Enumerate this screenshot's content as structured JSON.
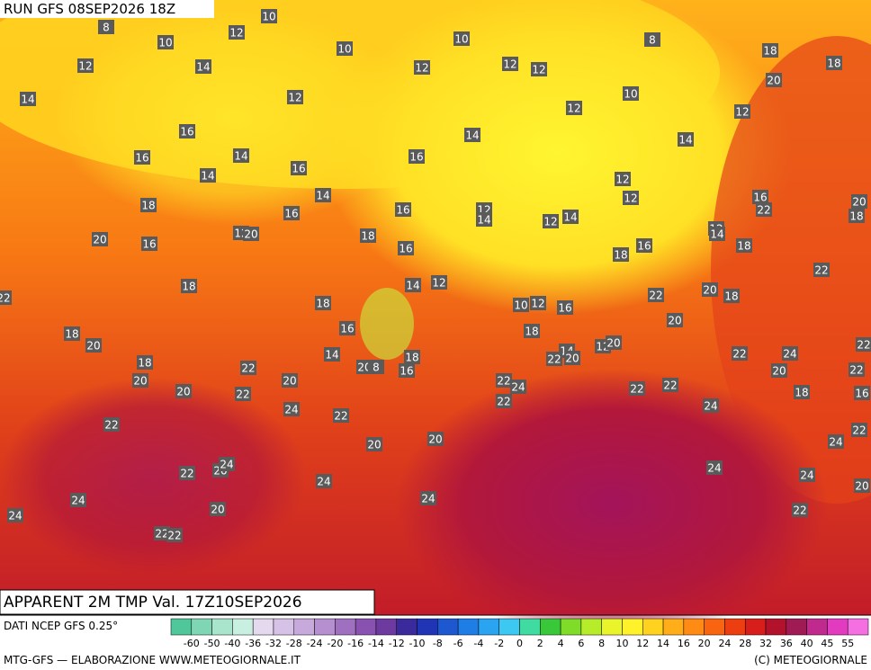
{
  "header": {
    "run": "RUN GFS 08SEP2026 18Z",
    "title": "APPARENT 2M TMP Val. 17Z10SEP2026"
  },
  "map": {
    "labels": [
      8,
      10,
      10,
      12,
      12,
      14,
      10,
      12,
      10,
      12,
      12,
      8,
      18,
      18,
      20,
      14,
      12,
      12,
      10,
      12,
      16,
      14,
      14,
      16,
      14,
      16,
      16,
      14,
      12,
      14,
      18,
      16,
      16,
      12,
      14,
      12,
      14,
      12,
      16,
      22,
      20,
      18,
      20,
      16,
      12,
      20,
      18,
      16,
      18,
      16,
      12,
      14,
      18,
      22,
      18,
      12,
      14,
      18,
      10,
      12,
      16,
      22,
      20,
      18,
      22,
      16,
      18,
      20,
      18,
      20,
      14,
      18,
      20,
      8,
      16,
      14,
      12,
      20,
      22,
      20,
      18,
      22,
      20,
      22,
      24,
      20,
      22,
      22,
      20,
      20,
      22,
      22,
      24,
      22,
      22,
      18,
      16,
      24,
      22,
      22,
      24,
      22,
      20,
      20,
      22,
      24,
      22,
      20,
      24,
      24,
      24,
      24,
      24,
      24,
      20,
      20,
      22,
      24,
      22,
      22
    ],
    "colorbar": {
      "labels": [
        -60,
        -50,
        -40,
        -36,
        -32,
        -28,
        -24,
        -20,
        -16,
        -14,
        -12,
        -10,
        -8,
        -6,
        -4,
        -2,
        0,
        2,
        4,
        6,
        8,
        10,
        12,
        14,
        16,
        20,
        24,
        28,
        32,
        36,
        40,
        45,
        55
      ],
      "colors": [
        "#4fc79a",
        "#7fd6b4",
        "#a9e4cc",
        "#c9efe0",
        "#e4d9ee",
        "#d6c2e6",
        "#c7a9dc",
        "#b58fcf",
        "#a070c0",
        "#8a52b0",
        "#6d3a9f",
        "#3a2a9c",
        "#1f35b5",
        "#1d58d0",
        "#1f7de6",
        "#2aa3f0",
        "#3cc8f0",
        "#3fdba0",
        "#38c83a",
        "#7fdd2a",
        "#b7ec2a",
        "#e9f52a",
        "#fff22a",
        "#ffd21f",
        "#ffae1a",
        "#ff8a14",
        "#f8640f",
        "#ec3e10",
        "#d81e1a",
        "#b3122d",
        "#a01b53",
        "#c02a8e",
        "#e23bc0",
        "#f56ee2"
      ]
    },
    "source": "DATI NCEP GFS 0.25°",
    "credit": "MTG-GFS — ELABORAZIONE WWW.METEOGIORNALE.IT",
    "copyright": "(C) METEOGIORNALE"
  }
}
